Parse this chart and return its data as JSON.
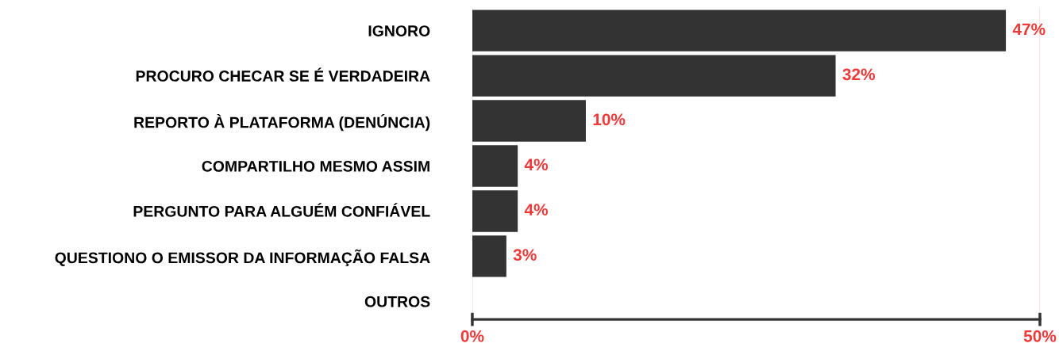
{
  "chart_data": {
    "type": "bar",
    "orientation": "horizontal",
    "categories": [
      "IGNORO",
      "PROCURO CHECAR SE É VERDADEIRA",
      "REPORTO À PLATAFORMA (DENÚNCIA)",
      "COMPARTILHO MESMO ASSIM",
      "PERGUNTO PARA ALGUÉM CONFIÁVEL",
      "QUESTIONO O EMISSOR DA INFORMAÇÃO FALSA",
      "OUTROS"
    ],
    "values": [
      47,
      32,
      10,
      4,
      4,
      3,
      0
    ],
    "value_labels": [
      "47%",
      "32%",
      "10%",
      "4%",
      "4%",
      "3%",
      null
    ],
    "color": "#333333",
    "xlim": [
      0,
      50
    ],
    "xticks": [
      {
        "value": 0,
        "label": "0%"
      },
      {
        "value": 50,
        "label": "50%"
      }
    ],
    "grid": "x",
    "legend": false
  }
}
